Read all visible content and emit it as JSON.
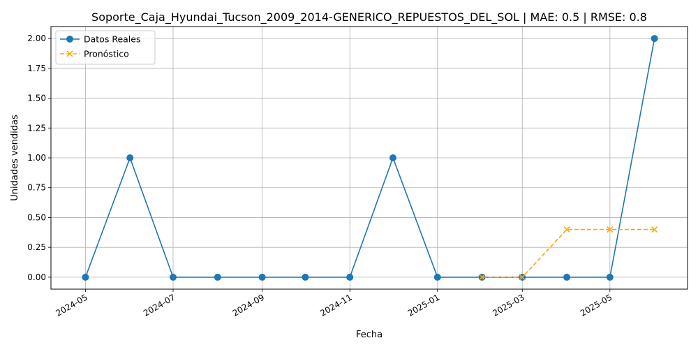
{
  "chart_data": {
    "type": "line",
    "title": "Soporte_Caja_Hyundai_Tucson_2009_2014-GENERICO_REPUESTOS_DEL_SOL | MAE: 0.5 | RMSE: 0.8",
    "xlabel": "Fecha",
    "ylabel": "Unidades vendidas",
    "x_ticks": [
      "2024-05",
      "2024-07",
      "2024-09",
      "2024-11",
      "2025-01",
      "2025-03",
      "2025-05"
    ],
    "y_ticks": [
      0.0,
      0.25,
      0.5,
      0.75,
      1.0,
      1.25,
      1.5,
      1.75,
      2.0
    ],
    "ylim": [
      -0.1,
      2.1
    ],
    "xlim": [
      "2024-04-07",
      "2025-06-24"
    ],
    "grid": true,
    "legend_position": "top-left",
    "series": [
      {
        "name": "Datos Reales",
        "color": "#1f77b4",
        "marker": "circle",
        "line_style": "solid",
        "x": [
          "2024-05-01",
          "2024-06-01",
          "2024-07-01",
          "2024-08-01",
          "2024-09-01",
          "2024-10-01",
          "2024-11-01",
          "2024-12-01",
          "2025-01-01",
          "2025-02-01",
          "2025-03-01",
          "2025-04-01",
          "2025-05-01",
          "2025-06-01"
        ],
        "values": [
          0,
          1,
          0,
          0,
          0,
          0,
          0,
          1,
          0,
          0,
          0,
          0,
          0,
          2
        ]
      },
      {
        "name": "Pronóstico",
        "color": "#ffa500",
        "marker": "x",
        "line_style": "dashed",
        "x": [
          "2025-02-01",
          "2025-03-01",
          "2025-04-01",
          "2025-05-01",
          "2025-06-01"
        ],
        "values": [
          0,
          0,
          0.4,
          0.4,
          0.4
        ]
      }
    ]
  }
}
